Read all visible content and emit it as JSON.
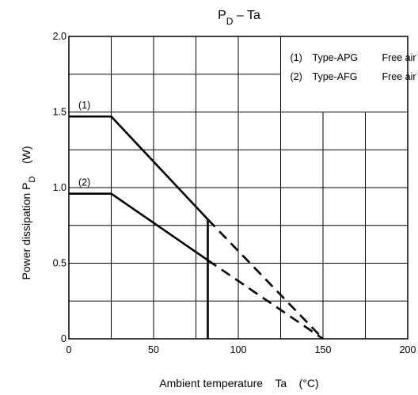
{
  "chart_data": {
    "type": "line",
    "title": {
      "main": "P",
      "sub": "D",
      "rest": " – Ta"
    },
    "xlabel": "Ambient temperature    Ta    (°C)",
    "ylabel": {
      "main": "Power dissipation   P",
      "sub": "D",
      "unit": "(W)"
    },
    "xlim": [
      0,
      200
    ],
    "ylim": [
      0,
      2.0
    ],
    "x_ticks": [
      "0",
      "50",
      "100",
      "150",
      "200"
    ],
    "y_ticks": [
      "0",
      "0.5",
      "1.0",
      "1.5",
      "2.0"
    ],
    "grid": true,
    "legend_position": "top-right",
    "legend": [
      {
        "number": "(1)",
        "type": "Type-APG",
        "condition": "Free air"
      },
      {
        "number": "(2)",
        "type": "Type-AFG",
        "condition": "Free air"
      }
    ],
    "series": [
      {
        "label": "(1)",
        "solid": [
          [
            0,
            1.47
          ],
          [
            25,
            1.47
          ],
          [
            82,
            0.79
          ]
        ],
        "dashed": [
          [
            82,
            0.79
          ],
          [
            150,
            0
          ]
        ]
      },
      {
        "label": "(2)",
        "solid": [
          [
            0,
            0.96
          ],
          [
            25,
            0.96
          ],
          [
            82,
            0.52
          ]
        ],
        "dashed": [
          [
            82,
            0.52
          ],
          [
            150,
            0
          ]
        ]
      }
    ],
    "cutoff_line": {
      "x": 82,
      "y_from": 0,
      "y_to": 0.79
    }
  }
}
